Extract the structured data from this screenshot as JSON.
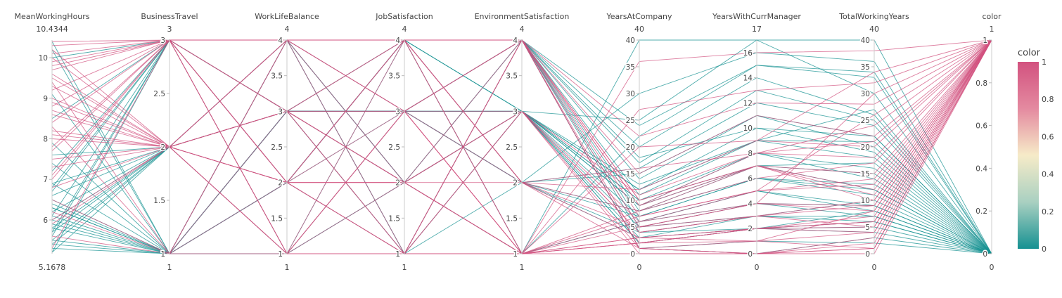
{
  "chart_data": {
    "type": "parallel_coordinates",
    "colorscale": [
      "#169192",
      "#a9d0c1",
      "#f6ebc8",
      "#e48aa0",
      "#d2527f"
    ],
    "colorbar": {
      "title": "color",
      "ticks": [
        "0",
        "0.2",
        "0.4",
        "0.6",
        "0.8",
        "1"
      ],
      "range": [
        0,
        1
      ]
    },
    "dimensions": [
      {
        "label": "MeanWorkingHours",
        "range": [
          5.1678,
          10.4344
        ],
        "min_label": "5.1678",
        "max_label": "10.4344",
        "ticks": [
          {
            "v": 6,
            "t": "6"
          },
          {
            "v": 7,
            "t": "7"
          },
          {
            "v": 8,
            "t": "8"
          },
          {
            "v": 9,
            "t": "9"
          },
          {
            "v": 10,
            "t": "10"
          }
        ]
      },
      {
        "label": "BusinessTravel",
        "range": [
          1,
          3
        ],
        "min_label": "1",
        "max_label": "3",
        "ticks": [
          {
            "v": 1,
            "t": "1"
          },
          {
            "v": 1.5,
            "t": "1.5"
          },
          {
            "v": 2,
            "t": "2"
          },
          {
            "v": 2.5,
            "t": "2.5"
          },
          {
            "v": 3,
            "t": "3"
          }
        ]
      },
      {
        "label": "WorkLifeBalance",
        "range": [
          1,
          4
        ],
        "min_label": "1",
        "max_label": "4",
        "ticks": [
          {
            "v": 1,
            "t": "1"
          },
          {
            "v": 1.5,
            "t": "1.5"
          },
          {
            "v": 2,
            "t": "2"
          },
          {
            "v": 2.5,
            "t": "2.5"
          },
          {
            "v": 3,
            "t": "3"
          },
          {
            "v": 3.5,
            "t": "3.5"
          },
          {
            "v": 4,
            "t": "4"
          }
        ]
      },
      {
        "label": "JobSatisfaction",
        "range": [
          1,
          4
        ],
        "min_label": "1",
        "max_label": "4",
        "ticks": [
          {
            "v": 1,
            "t": "1"
          },
          {
            "v": 1.5,
            "t": "1.5"
          },
          {
            "v": 2,
            "t": "2"
          },
          {
            "v": 2.5,
            "t": "2.5"
          },
          {
            "v": 3,
            "t": "3"
          },
          {
            "v": 3.5,
            "t": "3.5"
          },
          {
            "v": 4,
            "t": "4"
          }
        ]
      },
      {
        "label": "EnvironmentSatisfaction",
        "range": [
          1,
          4
        ],
        "min_label": "1",
        "max_label": "4",
        "ticks": [
          {
            "v": 1,
            "t": "1"
          },
          {
            "v": 1.5,
            "t": "1.5"
          },
          {
            "v": 2,
            "t": "2"
          },
          {
            "v": 2.5,
            "t": "2.5"
          },
          {
            "v": 3,
            "t": "3"
          },
          {
            "v": 3.5,
            "t": "3.5"
          },
          {
            "v": 4,
            "t": "4"
          }
        ]
      },
      {
        "label": "YearsAtCompany",
        "range": [
          0,
          40
        ],
        "min_label": "0",
        "max_label": "40",
        "ticks": [
          {
            "v": 0,
            "t": "0"
          },
          {
            "v": 5,
            "t": "5"
          },
          {
            "v": 10,
            "t": "10"
          },
          {
            "v": 15,
            "t": "15"
          },
          {
            "v": 20,
            "t": "20"
          },
          {
            "v": 25,
            "t": "25"
          },
          {
            "v": 30,
            "t": "30"
          },
          {
            "v": 35,
            "t": "35"
          },
          {
            "v": 40,
            "t": "40"
          }
        ]
      },
      {
        "label": "YearsWithCurrManager",
        "range": [
          0,
          17
        ],
        "min_label": "0",
        "max_label": "17",
        "ticks": [
          {
            "v": 0,
            "t": "0"
          },
          {
            "v": 2,
            "t": "2"
          },
          {
            "v": 4,
            "t": "4"
          },
          {
            "v": 6,
            "t": "6"
          },
          {
            "v": 8,
            "t": "8"
          },
          {
            "v": 10,
            "t": "10"
          },
          {
            "v": 12,
            "t": "12"
          },
          {
            "v": 14,
            "t": "14"
          },
          {
            "v": 16,
            "t": "16"
          }
        ]
      },
      {
        "label": "TotalWorkingYears",
        "range": [
          0,
          40
        ],
        "min_label": "0",
        "max_label": "40",
        "ticks": [
          {
            "v": 0,
            "t": "0"
          },
          {
            "v": 5,
            "t": "5"
          },
          {
            "v": 10,
            "t": "10"
          },
          {
            "v": 15,
            "t": "15"
          },
          {
            "v": 20,
            "t": "20"
          },
          {
            "v": 25,
            "t": "25"
          },
          {
            "v": 30,
            "t": "30"
          },
          {
            "v": 35,
            "t": "35"
          },
          {
            "v": 40,
            "t": "40"
          }
        ]
      },
      {
        "label": "color",
        "range": [
          0,
          1
        ],
        "min_label": "0",
        "max_label": "1",
        "ticks": [
          {
            "v": 0,
            "t": "0"
          },
          {
            "v": 0.2,
            "t": "0.2"
          },
          {
            "v": 0.4,
            "t": "0.4"
          },
          {
            "v": 0.6,
            "t": "0.6"
          },
          {
            "v": 0.8,
            "t": "0.8"
          },
          {
            "v": 1,
            "t": "1"
          }
        ]
      }
    ],
    "records": [
      [
        10.1,
        3,
        4,
        4,
        4,
        5,
        3,
        10,
        1
      ],
      [
        9.8,
        3,
        1,
        1,
        1,
        2,
        1,
        4,
        1
      ],
      [
        8.2,
        2,
        3,
        3,
        4,
        10,
        7,
        15,
        1
      ],
      [
        6.0,
        2,
        2,
        1,
        3,
        1,
        0,
        1,
        1
      ],
      [
        9.2,
        3,
        3,
        2,
        1,
        3,
        2,
        6,
        1
      ],
      [
        7.5,
        2,
        4,
        3,
        2,
        8,
        7,
        12,
        1
      ],
      [
        10.3,
        3,
        2,
        4,
        4,
        1,
        0,
        2,
        1
      ],
      [
        8.9,
        2,
        1,
        2,
        1,
        6,
        4,
        9,
        1
      ],
      [
        5.6,
        1,
        3,
        4,
        4,
        9,
        8,
        18,
        1
      ],
      [
        9.6,
        2,
        2,
        1,
        1,
        2,
        2,
        7,
        1
      ],
      [
        7.1,
        3,
        4,
        3,
        3,
        4,
        3,
        5,
        1
      ],
      [
        8.6,
        2,
        3,
        4,
        2,
        12,
        9,
        20,
        1
      ],
      [
        6.5,
        1,
        2,
        2,
        1,
        7,
        5,
        26,
        1
      ],
      [
        9.9,
        3,
        3,
        3,
        4,
        15,
        11,
        22,
        1
      ],
      [
        8.0,
        2,
        1,
        1,
        3,
        0,
        0,
        1,
        1
      ],
      [
        7.8,
        3,
        4,
        2,
        1,
        5,
        4,
        30,
        1
      ],
      [
        10.0,
        2,
        2,
        4,
        2,
        3,
        1,
        8,
        1
      ],
      [
        6.8,
        2,
        3,
        1,
        4,
        10,
        7,
        11,
        1
      ],
      [
        9.4,
        1,
        4,
        3,
        1,
        20,
        9,
        34,
        1
      ],
      [
        8.4,
        3,
        2,
        2,
        3,
        6,
        5,
        14,
        1
      ],
      [
        5.3,
        3,
        1,
        4,
        2,
        1,
        0,
        3,
        1
      ],
      [
        9.0,
        2,
        3,
        1,
        1,
        2,
        2,
        6,
        1
      ],
      [
        7.3,
        2,
        4,
        4,
        4,
        22,
        12,
        28,
        1
      ],
      [
        8.8,
        3,
        2,
        3,
        1,
        8,
        6,
        17,
        1
      ],
      [
        10.2,
        2,
        3,
        2,
        3,
        4,
        3,
        9,
        1
      ],
      [
        6.2,
        1,
        1,
        3,
        1,
        36,
        16,
        38,
        1
      ],
      [
        9.7,
        3,
        4,
        1,
        4,
        7,
        5,
        13,
        1
      ],
      [
        8.1,
        2,
        2,
        4,
        1,
        3,
        2,
        4,
        1
      ],
      [
        7.7,
        3,
        3,
        2,
        2,
        16,
        8,
        21,
        1
      ],
      [
        8.7,
        2,
        1,
        3,
        4,
        9,
        7,
        10,
        1
      ],
      [
        9.3,
        2,
        4,
        4,
        1,
        0,
        0,
        0,
        1
      ],
      [
        5.9,
        2,
        3,
        2,
        3,
        11,
        8,
        24,
        1
      ],
      [
        10.4,
        3,
        2,
        1,
        4,
        2,
        2,
        5,
        1
      ],
      [
        8.3,
        1,
        4,
        4,
        2,
        5,
        4,
        8,
        1
      ],
      [
        7.0,
        3,
        1,
        3,
        1,
        27,
        13,
        32,
        1
      ],
      [
        9.5,
        2,
        2,
        2,
        4,
        1,
        1,
        1,
        1
      ],
      [
        6.3,
        1,
        2,
        3,
        2,
        4,
        2,
        8,
        0
      ],
      [
        5.5,
        1,
        3,
        2,
        3,
        10,
        7,
        12,
        0
      ],
      [
        7.2,
        3,
        3,
        4,
        1,
        6,
        4,
        9,
        0
      ],
      [
        6.0,
        2,
        4,
        1,
        3,
        2,
        2,
        5,
        0
      ],
      [
        5.8,
        1,
        2,
        4,
        4,
        18,
        10,
        22,
        0
      ],
      [
        6.7,
        3,
        3,
        3,
        2,
        8,
        7,
        15,
        0
      ],
      [
        5.2,
        2,
        1,
        2,
        3,
        5,
        3,
        7,
        0
      ],
      [
        10.4,
        1,
        3,
        3,
        4,
        14,
        11,
        20,
        0
      ],
      [
        6.9,
        2,
        4,
        2,
        1,
        22,
        15,
        34,
        0
      ],
      [
        5.4,
        1,
        3,
        1,
        3,
        3,
        2,
        6,
        0
      ],
      [
        6.1,
        3,
        2,
        4,
        4,
        11,
        9,
        18,
        0
      ],
      [
        7.4,
        1,
        3,
        3,
        2,
        7,
        6,
        11,
        0
      ],
      [
        5.7,
        2,
        4,
        4,
        3,
        25,
        17,
        30,
        0
      ],
      [
        6.4,
        1,
        1,
        3,
        4,
        1,
        0,
        3,
        0
      ],
      [
        8.5,
        3,
        3,
        2,
        3,
        9,
        8,
        14,
        0
      ],
      [
        5.3,
        1,
        2,
        4,
        2,
        16,
        12,
        24,
        0
      ],
      [
        6.6,
        2,
        3,
        3,
        4,
        4,
        3,
        10,
        0
      ],
      [
        7.9,
        1,
        4,
        2,
        3,
        12,
        10,
        19,
        0
      ],
      [
        5.6,
        3,
        3,
        4,
        1,
        6,
        5,
        8,
        0
      ],
      [
        6.2,
        2,
        2,
        1,
        4,
        20,
        14,
        26,
        0
      ],
      [
        10.2,
        1,
        3,
        3,
        3,
        2,
        2,
        4,
        0
      ],
      [
        5.9,
        1,
        4,
        4,
        2,
        30,
        16,
        36,
        0
      ],
      [
        6.8,
        3,
        1,
        2,
        4,
        8,
        6,
        13,
        0
      ],
      [
        5.5,
        2,
        3,
        3,
        3,
        13,
        9,
        21,
        0
      ],
      [
        9.1,
        1,
        2,
        4,
        4,
        5,
        4,
        7,
        0
      ],
      [
        6.0,
        1,
        3,
        2,
        1,
        40,
        17,
        40,
        0
      ],
      [
        5.2,
        3,
        4,
        3,
        3,
        10,
        8,
        16,
        0
      ],
      [
        7.6,
        2,
        3,
        1,
        2,
        3,
        3,
        6,
        0
      ],
      [
        6.5,
        1,
        2,
        4,
        4,
        17,
        13,
        25,
        0
      ],
      [
        5.8,
        2,
        3,
        3,
        3,
        7,
        6,
        12,
        0
      ],
      [
        10.0,
        3,
        4,
        2,
        4,
        24,
        15,
        33,
        0
      ],
      [
        6.3,
        1,
        1,
        4,
        3,
        9,
        7,
        17,
        0
      ],
      [
        5.4,
        2,
        3,
        3,
        2,
        15,
        11,
        22,
        0
      ],
      [
        6.9,
        1,
        4,
        1,
        4,
        1,
        1,
        2,
        0
      ],
      [
        5.7,
        3,
        2,
        4,
        3,
        12,
        9,
        27,
        0
      ],
      [
        6.1,
        1,
        3,
        3,
        4,
        6,
        5,
        9,
        0
      ]
    ]
  }
}
